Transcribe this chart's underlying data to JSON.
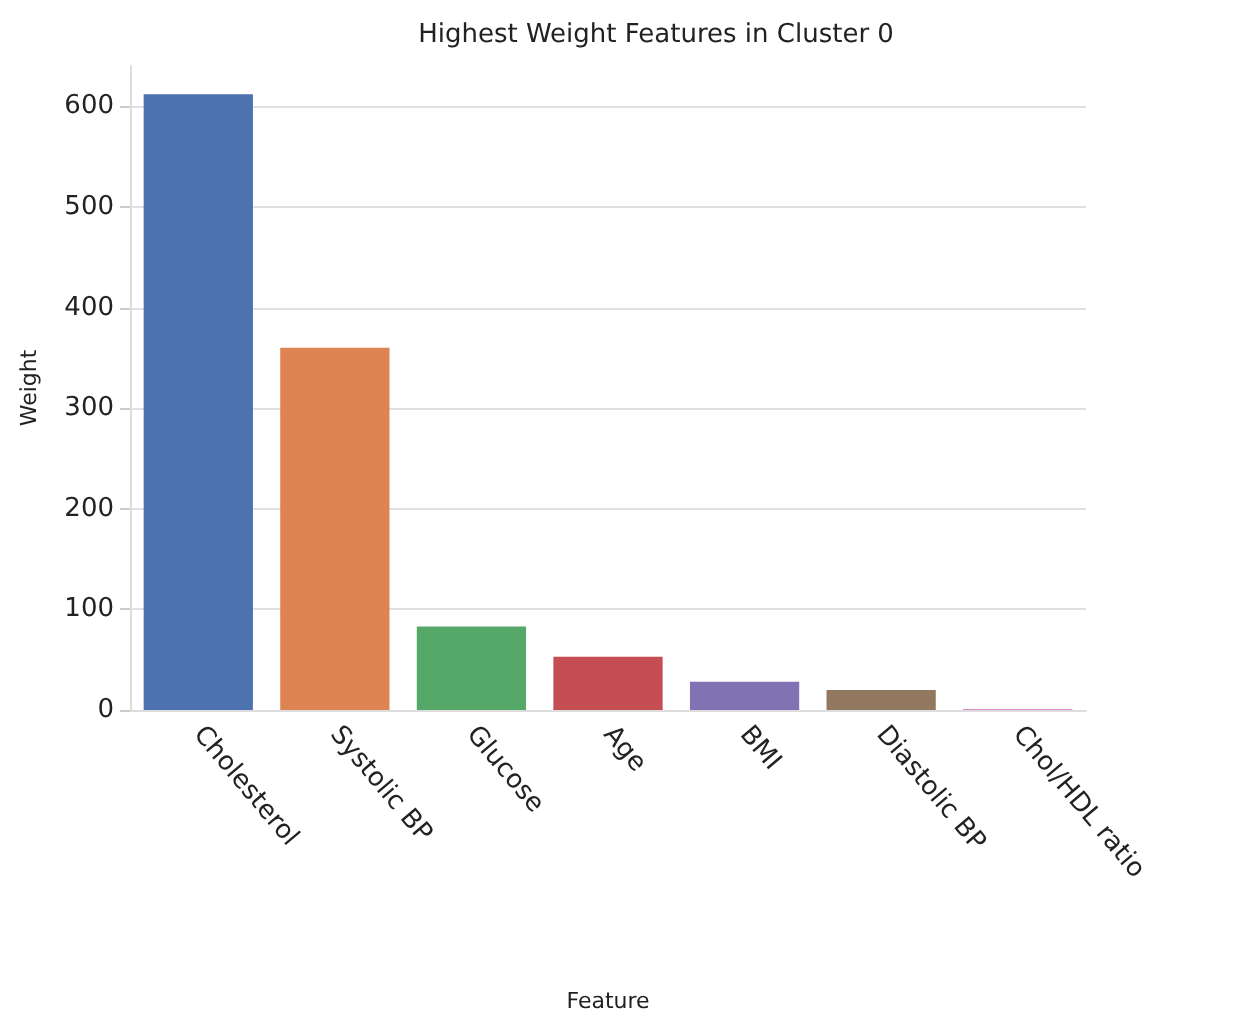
{
  "chart_data": {
    "type": "bar",
    "title": "Highest Weight Features in Cluster 0",
    "xlabel": "Feature",
    "ylabel": "Weight",
    "categories": [
      "Cholesterol",
      "Systolic BP",
      "Glucose",
      "Age",
      "BMI",
      "Diastolic BP",
      "Chol/HDL ratio"
    ],
    "values": [
      612,
      360,
      83,
      53,
      28,
      20,
      1
    ],
    "colors": [
      "#4c72b0",
      "#dd8452",
      "#55a868",
      "#c44e52",
      "#8172b3",
      "#937860",
      "#da8bc3"
    ],
    "ylim": [
      0,
      640
    ],
    "yticks": [
      0,
      100,
      200,
      300,
      400,
      500,
      600
    ],
    "grid": "y"
  }
}
